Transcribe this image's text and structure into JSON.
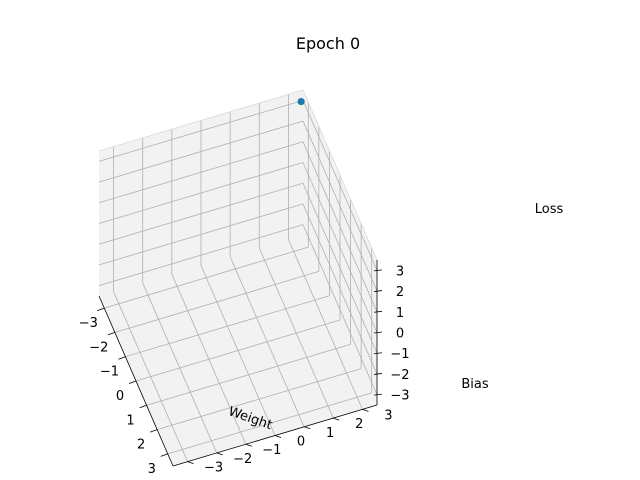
{
  "chart_data": {
    "type": "scatter",
    "title": "Epoch 0",
    "xlabel": "Weight",
    "ylabel": "Bias",
    "zlabel": "Loss",
    "xlim": [
      -3.5,
      3.5
    ],
    "ylim": [
      -3.5,
      3.5
    ],
    "zlim": [
      -3.5,
      3.5
    ],
    "xticks": [
      "−3",
      "−2",
      "−1",
      "0",
      "1",
      "2",
      "3"
    ],
    "yticks": [
      "−3",
      "−2",
      "−1",
      "0",
      "1",
      "2",
      "3"
    ],
    "zticks": [
      "−3",
      "−2",
      "−1",
      "0",
      "1",
      "2",
      "3"
    ],
    "grid": true,
    "points": [
      {
        "x": -3.4,
        "y": 3.4,
        "z": 3.1
      }
    ],
    "marker_color": "#1f77b4",
    "grid_color": "#b0b0b0",
    "pane_color": "#f2f2f2"
  }
}
